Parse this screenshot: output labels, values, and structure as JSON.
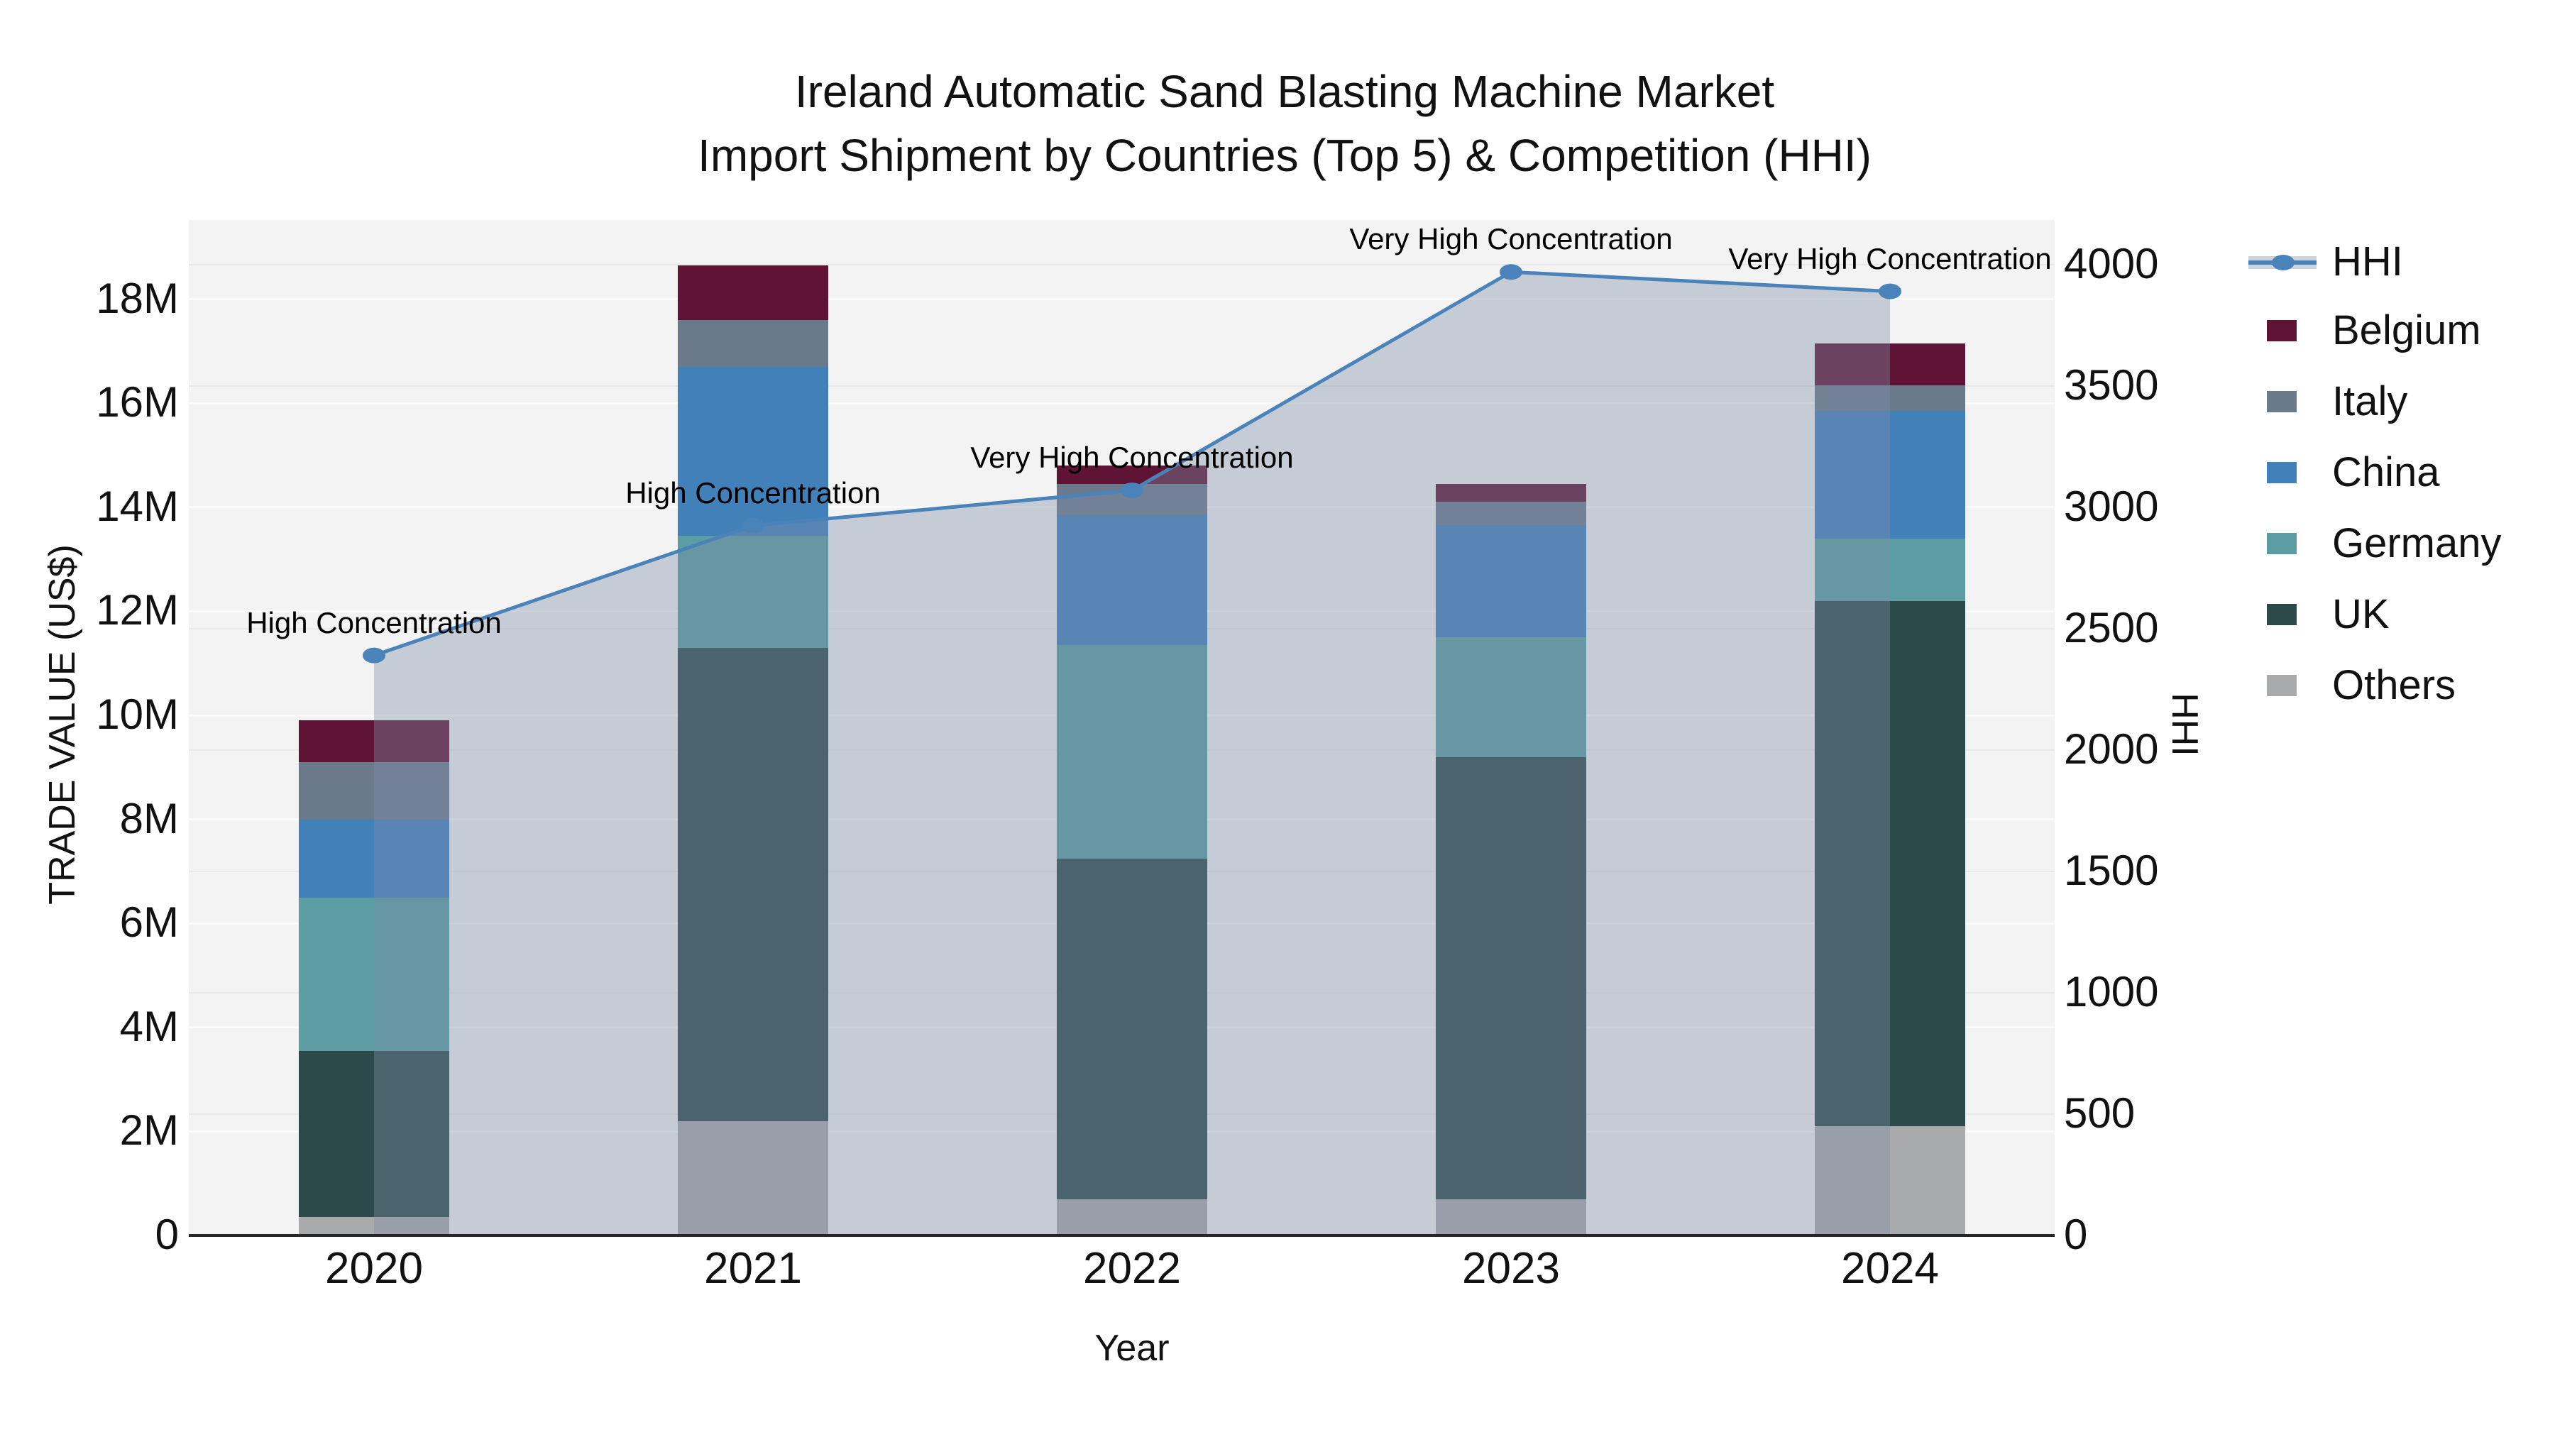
{
  "title": {
    "line1": "Ireland Automatic Sand Blasting Machine Market",
    "line2": "Import Shipment by Countries (Top 5) & Competition (HHI)"
  },
  "axes": {
    "x_label": "Year",
    "y_left_label": "TRADE VALUE (US$)",
    "y_right_label": "HHI",
    "x_ticks": [
      "2020",
      "2021",
      "2022",
      "2023",
      "2024"
    ],
    "y_left_ticks": [
      {
        "v": 0,
        "label": "0"
      },
      {
        "v": 2,
        "label": "2M"
      },
      {
        "v": 4,
        "label": "4M"
      },
      {
        "v": 6,
        "label": "6M"
      },
      {
        "v": 8,
        "label": "8M"
      },
      {
        "v": 10,
        "label": "10M"
      },
      {
        "v": 12,
        "label": "12M"
      },
      {
        "v": 14,
        "label": "14M"
      },
      {
        "v": 16,
        "label": "16M"
      },
      {
        "v": 18,
        "label": "18M"
      }
    ],
    "y_right_ticks": [
      {
        "v": 0,
        "label": "0"
      },
      {
        "v": 500,
        "label": "500"
      },
      {
        "v": 1000,
        "label": "1000"
      },
      {
        "v": 1500,
        "label": "1500"
      },
      {
        "v": 2000,
        "label": "2000"
      },
      {
        "v": 2500,
        "label": "2500"
      },
      {
        "v": 3000,
        "label": "3000"
      },
      {
        "v": 3500,
        "label": "3500"
      },
      {
        "v": 4000,
        "label": "4000"
      }
    ]
  },
  "legend": {
    "items": [
      {
        "label": "HHI",
        "type": "line",
        "color_key": "hhi_line"
      },
      {
        "label": "Belgium",
        "type": "patch",
        "color_key": "Belgium"
      },
      {
        "label": "Italy",
        "type": "patch",
        "color_key": "Italy"
      },
      {
        "label": "China",
        "type": "patch",
        "color_key": "China"
      },
      {
        "label": "Germany",
        "type": "patch",
        "color_key": "Germany"
      },
      {
        "label": "UK",
        "type": "patch",
        "color_key": "UK"
      },
      {
        "label": "Others",
        "type": "patch",
        "color_key": "Others"
      }
    ]
  },
  "colors": {
    "Belgium": "#5f1435",
    "Italy": "#6b7a8b",
    "China": "#4280ba",
    "Germany": "#5b9da2",
    "UK": "#2c4a49",
    "Others": "#a8aaac",
    "hhi_line": "#4a83b9",
    "hhi_area": "rgba(126,143,168,0.38)",
    "plot_bg": "#f3f3f3",
    "grid_left": "#fafafa",
    "grid_right": "#e8e8e8",
    "axis_line": "#262626"
  },
  "chart_data": {
    "type": "bar",
    "subtype": "stacked-bars-with-line-overlay",
    "categories": [
      "2020",
      "2021",
      "2022",
      "2023",
      "2024"
    ],
    "bar_unit": "million US$",
    "stack_order_bottom_to_top": [
      "Others",
      "UK",
      "Germany",
      "China",
      "Italy",
      "Belgium"
    ],
    "series": [
      {
        "name": "Others",
        "values": [
          0.35,
          2.2,
          0.7,
          0.7,
          2.1
        ]
      },
      {
        "name": "UK",
        "values": [
          3.2,
          9.1,
          6.55,
          8.5,
          10.1
        ]
      },
      {
        "name": "Germany",
        "values": [
          2.95,
          2.15,
          4.1,
          2.3,
          1.2
        ]
      },
      {
        "name": "China",
        "values": [
          1.5,
          3.25,
          2.5,
          2.15,
          2.45
        ]
      },
      {
        "name": "Italy",
        "values": [
          1.1,
          0.9,
          0.6,
          0.45,
          0.5
        ]
      },
      {
        "name": "Belgium",
        "values": [
          0.8,
          1.05,
          0.35,
          0.35,
          0.8
        ]
      }
    ],
    "bar_totals": [
      9.9,
      18.65,
      14.8,
      14.45,
      17.15
    ],
    "line_series": {
      "name": "HHI",
      "axis": "right",
      "values": [
        2390,
        2925,
        3070,
        3970,
        3890
      ],
      "area_fill": true
    },
    "annotations": [
      {
        "category": "2020",
        "text": "High Concentration"
      },
      {
        "category": "2021",
        "text": "High Concentration"
      },
      {
        "category": "2022",
        "text": "Very High Concentration"
      },
      {
        "category": "2023",
        "text": "Very High Concentration"
      },
      {
        "category": "2024",
        "text": "Very High Concentration"
      }
    ],
    "xlabel": "Year",
    "ylabel_left": "TRADE VALUE (US$)",
    "ylabel_right": "HHI",
    "ylim_left_millions": [
      0,
      19.5
    ],
    "ylim_right": [
      0,
      4190
    ],
    "grid": true,
    "legend_position": "right-outside"
  }
}
